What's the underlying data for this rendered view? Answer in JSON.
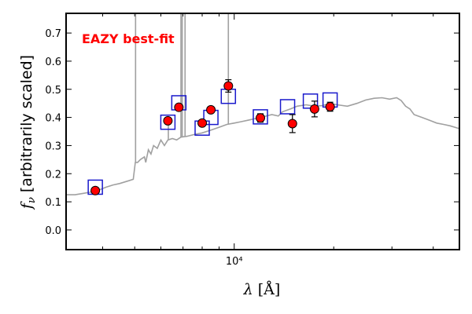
{
  "chart_data": {
    "type": "scatter",
    "annotation": "EAZY best-fit",
    "annotation_color": "#ff0000",
    "xlabel": "λ [Å]",
    "ylabel": "f_ν [arbitrarily scaled]",
    "x_scale": "log",
    "xlim": [
      3100,
      48000
    ],
    "ylim": [
      -0.07,
      0.77
    ],
    "grid": false,
    "yticks": [
      0.0,
      0.1,
      0.2,
      0.3,
      0.4,
      0.5,
      0.6,
      0.7
    ],
    "ytick_labels": [
      "0.0",
      "0.1",
      "0.2",
      "0.3",
      "0.4",
      "0.5",
      "0.6",
      "0.7"
    ],
    "xtick_major": [
      10000
    ],
    "xtick_major_labels": [
      "10⁴"
    ],
    "xtick_minor": [
      4000,
      5000,
      6000,
      7000,
      8000,
      9000,
      20000,
      30000,
      40000
    ],
    "series": [
      {
        "type": "errorbar",
        "marker": "circle",
        "color": "#ff0000",
        "edgecolor": "#000000",
        "points": [
          {
            "x": 3800,
            "y": 0.14,
            "err": 0.008
          },
          {
            "x": 6300,
            "y": 0.388,
            "err": 0.01
          },
          {
            "x": 6800,
            "y": 0.436,
            "err": 0.01
          },
          {
            "x": 8000,
            "y": 0.38,
            "err": 0.01
          },
          {
            "x": 8500,
            "y": 0.427,
            "err": 0.01
          },
          {
            "x": 9600,
            "y": 0.512,
            "err": 0.022
          },
          {
            "x": 12000,
            "y": 0.398,
            "err": 0.015
          },
          {
            "x": 15000,
            "y": 0.378,
            "err": 0.032
          },
          {
            "x": 17500,
            "y": 0.43,
            "err": 0.028
          },
          {
            "x": 19500,
            "y": 0.438,
            "err": 0.016
          }
        ]
      },
      {
        "type": "model-photometry",
        "marker": "open-square",
        "color": "#1a1acc",
        "points": [
          {
            "x": 3800,
            "y": 0.152
          },
          {
            "x": 6300,
            "y": 0.383
          },
          {
            "x": 6800,
            "y": 0.452
          },
          {
            "x": 8000,
            "y": 0.362
          },
          {
            "x": 8500,
            "y": 0.4
          },
          {
            "x": 9600,
            "y": 0.475
          },
          {
            "x": 12000,
            "y": 0.402
          },
          {
            "x": 14500,
            "y": 0.438
          },
          {
            "x": 17000,
            "y": 0.458
          },
          {
            "x": 19500,
            "y": 0.462
          }
        ]
      },
      {
        "type": "line",
        "color": "#a0a0a0",
        "points": [
          [
            3100,
            0.125
          ],
          [
            3300,
            0.125
          ],
          [
            3500,
            0.13
          ],
          [
            3700,
            0.135
          ],
          [
            3900,
            0.142
          ],
          [
            4100,
            0.152
          ],
          [
            4300,
            0.16
          ],
          [
            4500,
            0.165
          ],
          [
            4800,
            0.175
          ],
          [
            4950,
            0.18
          ],
          [
            5020,
            0.24
          ],
          [
            5100,
            0.24
          ],
          [
            5200,
            0.25
          ],
          [
            5350,
            0.26
          ],
          [
            5400,
            0.24
          ],
          [
            5500,
            0.285
          ],
          [
            5600,
            0.27
          ],
          [
            5700,
            0.3
          ],
          [
            5850,
            0.29
          ],
          [
            6000,
            0.32
          ],
          [
            6150,
            0.3
          ],
          [
            6300,
            0.32
          ],
          [
            6500,
            0.325
          ],
          [
            6700,
            0.32
          ],
          [
            6900,
            0.33
          ],
          [
            7200,
            0.333
          ],
          [
            7600,
            0.34
          ],
          [
            8000,
            0.345
          ],
          [
            8500,
            0.355
          ],
          [
            9000,
            0.365
          ],
          [
            9500,
            0.375
          ],
          [
            10000,
            0.38
          ],
          [
            10500,
            0.385
          ],
          [
            11000,
            0.39
          ],
          [
            12000,
            0.4
          ],
          [
            13000,
            0.41
          ],
          [
            13600,
            0.405
          ],
          [
            14000,
            0.42
          ],
          [
            14800,
            0.43
          ],
          [
            15500,
            0.44
          ],
          [
            16500,
            0.445
          ],
          [
            17500,
            0.44
          ],
          [
            18500,
            0.442
          ],
          [
            19500,
            0.45
          ],
          [
            20500,
            0.445
          ],
          [
            22000,
            0.44
          ],
          [
            23500,
            0.45
          ],
          [
            25000,
            0.462
          ],
          [
            26500,
            0.468
          ],
          [
            28000,
            0.47
          ],
          [
            29500,
            0.465
          ],
          [
            31000,
            0.47
          ],
          [
            32000,
            0.46
          ],
          [
            33000,
            0.44
          ],
          [
            34000,
            0.43
          ],
          [
            35000,
            0.41
          ],
          [
            37000,
            0.4
          ],
          [
            39000,
            0.39
          ],
          [
            41000,
            0.38
          ],
          [
            43000,
            0.375
          ],
          [
            45000,
            0.37
          ],
          [
            48000,
            0.36
          ]
        ],
        "emission_lines": [
          {
            "x": 5030,
            "y": 0.77
          },
          {
            "x": 6320,
            "y": 0.39
          },
          {
            "x": 6900,
            "y": 0.77
          },
          {
            "x": 6960,
            "y": 0.77
          },
          {
            "x": 7100,
            "y": 0.77
          },
          {
            "x": 9600,
            "y": 0.77
          }
        ]
      }
    ]
  }
}
